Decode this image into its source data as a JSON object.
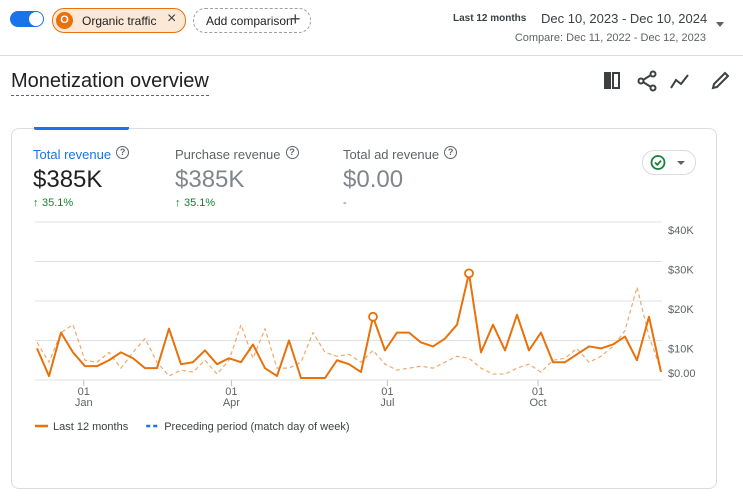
{
  "header": {
    "segment": "Organic traffic",
    "add_comparison": "Add comparison",
    "range_label": "Last 12 months",
    "range": "Dec 10, 2023 - Dec 10, 2024",
    "compare": "Compare: Dec 11, 2022 - Dec 12, 2023"
  },
  "title": "Monetization overview",
  "metrics": [
    {
      "label": "Total revenue",
      "value": "$385K",
      "change": "35.1%"
    },
    {
      "label": "Purchase revenue",
      "value": "$385K",
      "change": "35.1%"
    },
    {
      "label": "Total ad revenue",
      "value": "$0.00",
      "change": "-"
    }
  ],
  "chart_data": {
    "type": "line",
    "xlim": [
      0,
      52
    ],
    "xticks": [
      {
        "value": 3.9,
        "label": "01",
        "month": "Jan"
      },
      {
        "value": 16.2,
        "label": "01",
        "month": "Apr"
      },
      {
        "value": 29.2,
        "label": "01",
        "month": "Jul"
      },
      {
        "value": 41.75,
        "label": "01",
        "month": "Oct"
      }
    ],
    "ylim": [
      0,
      40000
    ],
    "yticks": [
      {
        "value": 0,
        "label": "$0.00"
      },
      {
        "value": 10000,
        "label": "$10K"
      },
      {
        "value": 20000,
        "label": "$20K"
      },
      {
        "value": 30000,
        "label": "$30K"
      },
      {
        "value": 40000,
        "label": "$40K"
      }
    ],
    "grid": true,
    "markers": [
      28,
      36
    ],
    "series": [
      {
        "name": "Last 12 months",
        "color": "#e8710a",
        "legend_color": "#e8710a",
        "dashed": false,
        "values": [
          8000,
          1000,
          12000,
          7000,
          3500,
          3500,
          5000,
          7000,
          5500,
          3000,
          3000,
          13000,
          4000,
          4500,
          7500,
          4000,
          5500,
          4500,
          9000,
          3000,
          1000,
          10000,
          500,
          500,
          500,
          5000,
          4000,
          2000,
          16000,
          7500,
          12000,
          12000,
          9500,
          8500,
          10500,
          14000,
          27000,
          7000,
          14000,
          7500,
          16500,
          7500,
          12000,
          4500,
          4500,
          6500,
          8500,
          8000,
          9000,
          11000,
          5000,
          16000,
          2000
        ]
      },
      {
        "name": "Preceding period (match day of week)",
        "color": "#f0a868",
        "legend_color": "#1a73e8",
        "dashed": true,
        "values": [
          9500,
          4500,
          12000,
          14000,
          5000,
          4500,
          7000,
          3000,
          7000,
          10500,
          4500,
          1000,
          2500,
          2000,
          5000,
          1500,
          5000,
          14000,
          5500,
          13000,
          3000,
          3000,
          4500,
          12000,
          7000,
          6000,
          6500,
          4500,
          7500,
          4000,
          2500,
          3000,
          3500,
          3000,
          4500,
          6000,
          5500,
          3000,
          1500,
          1500,
          3000,
          4000,
          2000,
          5000,
          5500,
          8000,
          4500,
          6000,
          8500,
          12500,
          23500,
          11000,
          2500
        ]
      }
    ]
  }
}
